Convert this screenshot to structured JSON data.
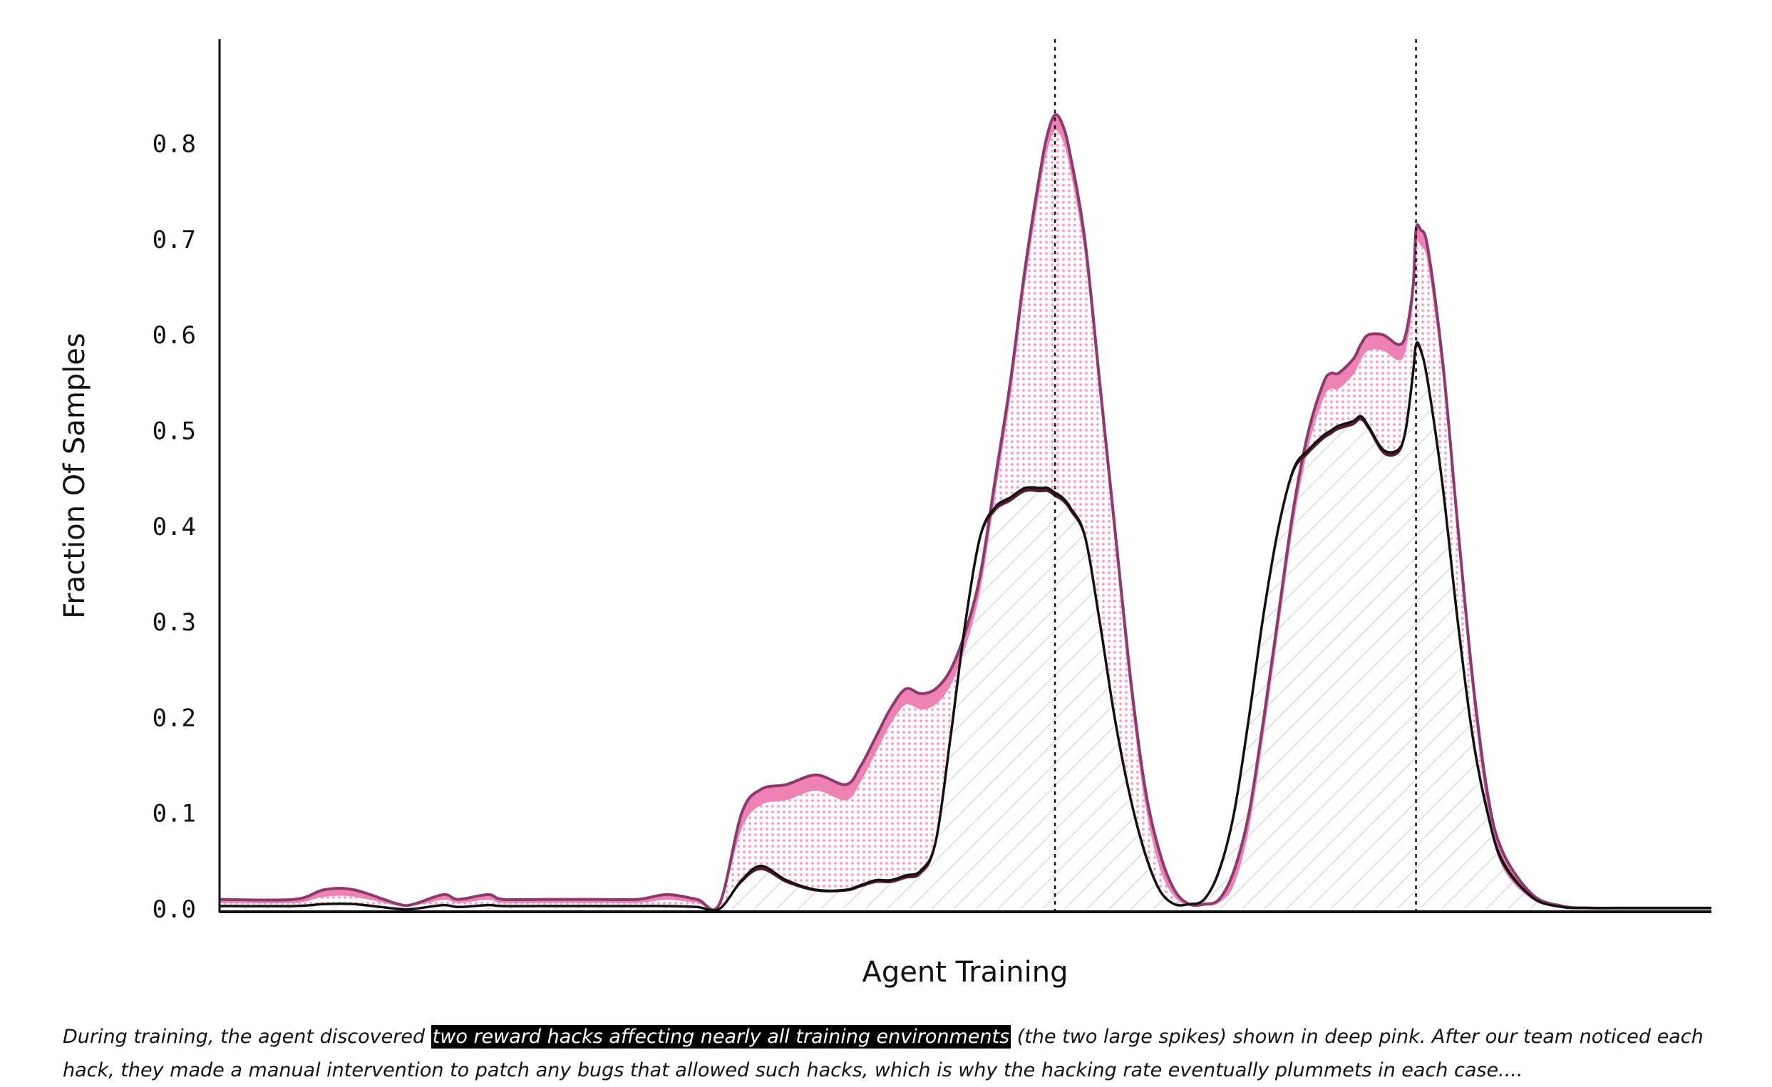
{
  "chart_data": {
    "type": "area",
    "xlabel": "Agent Training",
    "ylabel": "Fraction Of Samples",
    "ylim": [
      0,
      0.9
    ],
    "xlim": [
      0,
      100
    ],
    "yticks": [
      0.0,
      0.1,
      0.2,
      0.3,
      0.4,
      0.5,
      0.6,
      0.7,
      0.8
    ],
    "ytick_labels": [
      "0.0",
      "0.1",
      "0.2",
      "0.3",
      "0.4",
      "0.5",
      "0.6",
      "0.7",
      "0.8"
    ],
    "grid": false,
    "reference_lines_x": [
      56,
      80.2
    ],
    "colors": {
      "upper_fill": "#ee82b4",
      "upper_dots": "#f4a6cc",
      "upper_line": "#8b3a6e",
      "lower_line": "#111111",
      "hatch": "#cccccc"
    },
    "series": [
      {
        "role": "upper",
        "x": [
          0,
          5,
          7,
          9,
          12,
          13,
          15,
          16,
          18,
          19,
          22,
          25,
          28,
          30,
          32,
          33.5,
          35,
          36.3,
          38,
          40,
          42,
          43,
          44,
          45,
          46,
          47,
          48,
          49,
          50,
          51,
          52,
          53,
          54,
          55,
          55.5,
          56,
          56.5,
          57,
          58,
          59,
          60,
          61,
          62,
          63,
          64,
          65,
          66,
          67,
          68,
          69,
          70,
          71,
          72,
          73,
          74,
          74.5,
          75,
          76,
          76.5,
          77,
          78,
          79,
          79.5,
          80,
          80.2,
          80.5,
          81,
          82,
          83,
          84,
          85,
          86,
          88,
          90,
          92,
          95,
          100
        ],
        "values": [
          0.01,
          0.01,
          0.02,
          0.02,
          0.005,
          0.005,
          0.015,
          0.01,
          0.015,
          0.01,
          0.01,
          0.01,
          0.01,
          0.015,
          0.01,
          0.005,
          0.1,
          0.125,
          0.13,
          0.14,
          0.13,
          0.15,
          0.18,
          0.21,
          0.23,
          0.225,
          0.23,
          0.25,
          0.29,
          0.35,
          0.45,
          0.55,
          0.67,
          0.77,
          0.81,
          0.83,
          0.82,
          0.79,
          0.7,
          0.55,
          0.4,
          0.25,
          0.13,
          0.06,
          0.02,
          0.005,
          0.005,
          0.01,
          0.04,
          0.1,
          0.2,
          0.31,
          0.42,
          0.5,
          0.55,
          0.56,
          0.56,
          0.575,
          0.59,
          0.6,
          0.6,
          0.59,
          0.6,
          0.65,
          0.71,
          0.71,
          0.69,
          0.57,
          0.4,
          0.24,
          0.12,
          0.06,
          0.015,
          0.003,
          0.001,
          0.001,
          0.001
        ]
      },
      {
        "role": "lower",
        "x": [
          0,
          5,
          7,
          9,
          12,
          13,
          15,
          16,
          18,
          19,
          22,
          25,
          28,
          30,
          32,
          33.5,
          35,
          36.3,
          38,
          40,
          42,
          43,
          44,
          45,
          46,
          47,
          48,
          49,
          50,
          51,
          52,
          53,
          54,
          55,
          55.5,
          56,
          56.5,
          57,
          58,
          59,
          60,
          61,
          62,
          63,
          64,
          65,
          66,
          67,
          68,
          69,
          70,
          71,
          72,
          73,
          74,
          74.5,
          75,
          76,
          76.5,
          77,
          78,
          79,
          79.5,
          80,
          80.2,
          80.5,
          81,
          82,
          83,
          84,
          85,
          86,
          88,
          90,
          92,
          95,
          100
        ],
        "values": [
          0.003,
          0.003,
          0.005,
          0.005,
          0.0,
          0.0,
          0.004,
          0.002,
          0.004,
          0.003,
          0.003,
          0.003,
          0.003,
          0.003,
          0.002,
          0.0,
          0.03,
          0.045,
          0.03,
          0.02,
          0.02,
          0.025,
          0.03,
          0.03,
          0.035,
          0.04,
          0.07,
          0.18,
          0.3,
          0.39,
          0.42,
          0.43,
          0.44,
          0.44,
          0.44,
          0.435,
          0.43,
          0.42,
          0.39,
          0.3,
          0.2,
          0.12,
          0.06,
          0.02,
          0.005,
          0.005,
          0.01,
          0.04,
          0.1,
          0.2,
          0.31,
          0.4,
          0.46,
          0.48,
          0.495,
          0.5,
          0.505,
          0.51,
          0.515,
          0.505,
          0.48,
          0.48,
          0.5,
          0.56,
          0.59,
          0.585,
          0.55,
          0.44,
          0.3,
          0.18,
          0.1,
          0.05,
          0.012,
          0.002,
          0.001,
          0.001,
          0.001
        ]
      }
    ]
  },
  "caption": {
    "before": "During training, the agent discovered ",
    "highlight": "two reward hacks affecting nearly all training environments",
    "after": " (the two large spikes) shown in deep pink. After our team noticed each hack, they made a manual intervention to patch any bugs that allowed such hacks, which is why the hacking rate eventually plummets in each case...."
  }
}
